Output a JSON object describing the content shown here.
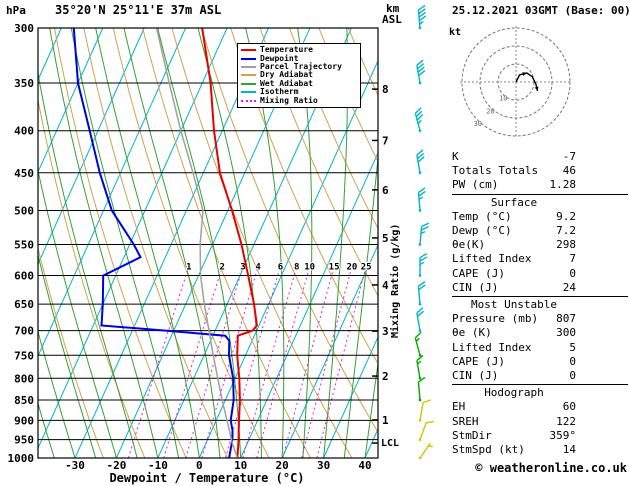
{
  "header": {
    "pressure_unit": "hPa",
    "station_title": "35°20'N 25°11'E 37m ASL",
    "altitude_unit_top": "km",
    "altitude_unit_bottom": "ASL",
    "date_title": "25.12.2021 03GMT (Base: 00)"
  },
  "legend": {
    "items": [
      {
        "label": "Temperature",
        "color": "#e60000"
      },
      {
        "label": "Dewpoint",
        "color": "#0000dd"
      },
      {
        "label": "Parcel Trajectory",
        "color": "#a0a0a0"
      },
      {
        "label": "Dry Adiabat",
        "color": "#cfa352"
      },
      {
        "label": "Wet Adiabat",
        "color": "#35a035"
      },
      {
        "label": "Isotherm",
        "color": "#00b4cc"
      },
      {
        "label": "Mixing Ratio",
        "color": "#dd22dd"
      }
    ]
  },
  "axes": {
    "pressure_ticks": [
      "300",
      "350",
      "400",
      "450",
      "500",
      "550",
      "600",
      "650",
      "700",
      "750",
      "800",
      "850",
      "900",
      "950",
      "1000"
    ],
    "temp_ticks": [
      "-30",
      "-20",
      "-10",
      "0",
      "10",
      "20",
      "30",
      "40"
    ],
    "km_ticks": [
      "8",
      "7",
      "6",
      "5",
      "4",
      "3",
      "2",
      "1"
    ],
    "lcl_label": "LCL",
    "x_title": "Dewpoint / Temperature (°C)",
    "mixing_ratio_title": "Mixing Ratio (g/kg)",
    "mixing_ratio_values": [
      "1",
      "2",
      "3",
      "4",
      "6",
      "8",
      "10",
      "15",
      "20",
      "25"
    ]
  },
  "hodograph": {
    "unit_label": "kt",
    "rings_kt": [
      10,
      20,
      30
    ],
    "ring_labels": [
      "10",
      "20",
      "30"
    ],
    "trace_uv_kt": [
      [
        0,
        0
      ],
      [
        2,
        4
      ],
      [
        6,
        5
      ],
      [
        9,
        3
      ],
      [
        11,
        -1
      ],
      [
        12,
        -5
      ]
    ]
  },
  "stats": {
    "top": [
      {
        "label": "K",
        "value": "-7"
      },
      {
        "label": "Totals Totals",
        "value": "46"
      },
      {
        "label": "PW (cm)",
        "value": "1.28"
      }
    ],
    "surface": {
      "header": "Surface",
      "rows": [
        {
          "label": "Temp (°C)",
          "value": "9.2"
        },
        {
          "label": "Dewp (°C)",
          "value": "7.2"
        },
        {
          "label": "θe(K)",
          "value": "298"
        },
        {
          "label": "Lifted Index",
          "value": "7"
        },
        {
          "label": "CAPE (J)",
          "value": "0"
        },
        {
          "label": "CIN (J)",
          "value": "24"
        }
      ]
    },
    "most_unstable": {
      "header": "Most Unstable",
      "rows": [
        {
          "label": "Pressure (mb)",
          "value": "807"
        },
        {
          "label": "θe (K)",
          "value": "300"
        },
        {
          "label": "Lifted Index",
          "value": "5"
        },
        {
          "label": "CAPE (J)",
          "value": "0"
        },
        {
          "label": "CIN (J)",
          "value": "0"
        }
      ]
    },
    "hodograph_section": {
      "header": "Hodograph",
      "rows": [
        {
          "label": "EH",
          "value": "60"
        },
        {
          "label": "SREH",
          "value": "122"
        },
        {
          "label": "StmDir",
          "value": "359°"
        },
        {
          "label": "StmSpd (kt)",
          "value": "14"
        }
      ]
    }
  },
  "footer": {
    "copyright": "© weatheronline.co.uk"
  },
  "chart_data": {
    "type": "line",
    "title": "Skew-T log-P sounding",
    "x_axis": {
      "label": "Dewpoint / Temperature (°C)",
      "ticks": [
        -30,
        -20,
        -10,
        0,
        10,
        20,
        30,
        40
      ]
    },
    "y_axis": {
      "label": "hPa",
      "scale": "log",
      "range": [
        300,
        1000
      ],
      "ticks": [
        300,
        350,
        400,
        450,
        500,
        550,
        600,
        650,
        700,
        750,
        800,
        850,
        900,
        950,
        1000
      ]
    },
    "series": [
      {
        "name": "Temperature",
        "color": "#e60000",
        "points_p_T": [
          [
            1000,
            9.2
          ],
          [
            950,
            7.5
          ],
          [
            925,
            6.5
          ],
          [
            900,
            5.5
          ],
          [
            850,
            3.5
          ],
          [
            800,
            1.0
          ],
          [
            750,
            -2.0
          ],
          [
            710,
            -4.0
          ],
          [
            700,
            -1.0
          ],
          [
            690,
            -0.5
          ],
          [
            650,
            -3.5
          ],
          [
            600,
            -8.0
          ],
          [
            550,
            -13.0
          ],
          [
            500,
            -19.0
          ],
          [
            450,
            -26.0
          ],
          [
            400,
            -32.0
          ],
          [
            350,
            -38.0
          ],
          [
            300,
            -46.0
          ]
        ]
      },
      {
        "name": "Dewpoint",
        "color": "#0000dd",
        "points_p_T": [
          [
            1000,
            7.2
          ],
          [
            950,
            6.0
          ],
          [
            925,
            5.0
          ],
          [
            900,
            3.5
          ],
          [
            850,
            2.0
          ],
          [
            800,
            -0.5
          ],
          [
            750,
            -4.0
          ],
          [
            720,
            -5.5
          ],
          [
            710,
            -7.0
          ],
          [
            700,
            -22.0
          ],
          [
            690,
            -38.0
          ],
          [
            650,
            -40.0
          ],
          [
            600,
            -43.0
          ],
          [
            570,
            -36.0
          ],
          [
            550,
            -39.0
          ],
          [
            500,
            -48.0
          ],
          [
            450,
            -55.0
          ],
          [
            400,
            -62.0
          ],
          [
            350,
            -70.0
          ],
          [
            300,
            -77.0
          ]
        ]
      },
      {
        "name": "Parcel Trajectory",
        "color": "#a0a0a0",
        "points_p_T": [
          [
            1000,
            9.2
          ],
          [
            960,
            6.4
          ],
          [
            900,
            2.6
          ],
          [
            850,
            -0.8
          ],
          [
            800,
            -4.2
          ],
          [
            750,
            -7.8
          ],
          [
            700,
            -11.5
          ],
          [
            650,
            -15.5
          ],
          [
            600,
            -19.5
          ],
          [
            550,
            -23.0
          ],
          [
            500,
            -26.0
          ],
          [
            450,
            -32.5
          ],
          [
            400,
            -40.0
          ],
          [
            350,
            -48.0
          ],
          [
            300,
            -57.0
          ]
        ]
      }
    ],
    "winds": [
      {
        "p": 1000,
        "dir_deg": 35,
        "speed_kt": 5,
        "color": "#d4c400"
      },
      {
        "p": 950,
        "dir_deg": 20,
        "speed_kt": 10,
        "color": "#d4c400"
      },
      {
        "p": 900,
        "dir_deg": 10,
        "speed_kt": 10,
        "color": "#d4c400"
      },
      {
        "p": 850,
        "dir_deg": 355,
        "speed_kt": 10,
        "color": "#00a800"
      },
      {
        "p": 800,
        "dir_deg": 350,
        "speed_kt": 15,
        "color": "#00a800"
      },
      {
        "p": 750,
        "dir_deg": 345,
        "speed_kt": 15,
        "color": "#00a800"
      },
      {
        "p": 700,
        "dir_deg": 350,
        "speed_kt": 20,
        "color": "#00b4c8"
      },
      {
        "p": 650,
        "dir_deg": 355,
        "speed_kt": 20,
        "color": "#00b4c8"
      },
      {
        "p": 600,
        "dir_deg": 0,
        "speed_kt": 25,
        "color": "#00b4c8"
      },
      {
        "p": 550,
        "dir_deg": 5,
        "speed_kt": 25,
        "color": "#00b4c8"
      },
      {
        "p": 500,
        "dir_deg": 355,
        "speed_kt": 25,
        "color": "#00b4c8"
      },
      {
        "p": 450,
        "dir_deg": 350,
        "speed_kt": 30,
        "color": "#00b4c8"
      },
      {
        "p": 400,
        "dir_deg": 345,
        "speed_kt": 35,
        "color": "#00b4c8"
      },
      {
        "p": 350,
        "dir_deg": 350,
        "speed_kt": 40,
        "color": "#00b4c8"
      },
      {
        "p": 300,
        "dir_deg": 355,
        "speed_kt": 45,
        "color": "#00b4c8"
      }
    ],
    "km_levels": [
      {
        "km": "8",
        "p": 356
      },
      {
        "km": "7",
        "p": 411
      },
      {
        "km": "6",
        "p": 472
      },
      {
        "km": "5",
        "p": 540
      },
      {
        "km": "4",
        "p": 616
      },
      {
        "km": "3",
        "p": 701
      },
      {
        "km": "2",
        "p": 795
      },
      {
        "km": "1",
        "p": 899
      }
    ],
    "lcl_pressure": 959,
    "grid": {
      "isotherm_step_c": 10,
      "dry_adiabat_theta_range_k": [
        250,
        450,
        10
      ],
      "wet_adiabat_start_range_c": [
        -40,
        45,
        5
      ],
      "mixing_ratio_g_kg": [
        1,
        2,
        3,
        4,
        6,
        8,
        10,
        15,
        20,
        25
      ],
      "colors": {
        "isotherm": "#00b4cc",
        "dry_adiabat": "#cfa352",
        "wet_adiabat": "#35a035",
        "mixing_ratio": "#dd22dd",
        "pressure": "#000000"
      }
    }
  }
}
